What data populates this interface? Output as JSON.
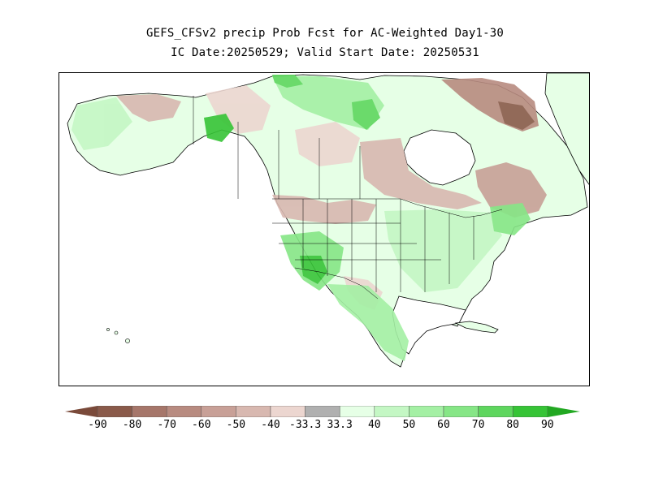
{
  "title": {
    "line1": "GEFS_CFSv2 precip Prob Fcst for AC-Weighted Day1-30",
    "line2": "IC Date:20250529; Valid Start Date: 20250531"
  },
  "map": {
    "region": "North America",
    "land_color": "#e6ffe6",
    "ocean_color": "#ffffff"
  },
  "colorbar": {
    "left_color": "#7a4a3a",
    "right_color": "#22a822",
    "bins": [
      {
        "color": "#8a5a4a"
      },
      {
        "color": "#a6766a"
      },
      {
        "color": "#b88b80"
      },
      {
        "color": "#c8a097"
      },
      {
        "color": "#d8b8b0"
      },
      {
        "color": "#ecd6d0"
      },
      {
        "color": "#b0b0b0"
      },
      {
        "color": "#e6ffe6"
      },
      {
        "color": "#c4f7c4"
      },
      {
        "color": "#a4f0a4"
      },
      {
        "color": "#86e686"
      },
      {
        "color": "#5ed65e"
      },
      {
        "color": "#36c436"
      }
    ],
    "labels": [
      "-90",
      "-80",
      "-70",
      "-60",
      "-50",
      "-40",
      "-33.3",
      "33.3",
      "40",
      "50",
      "60",
      "70",
      "80",
      "90"
    ]
  }
}
